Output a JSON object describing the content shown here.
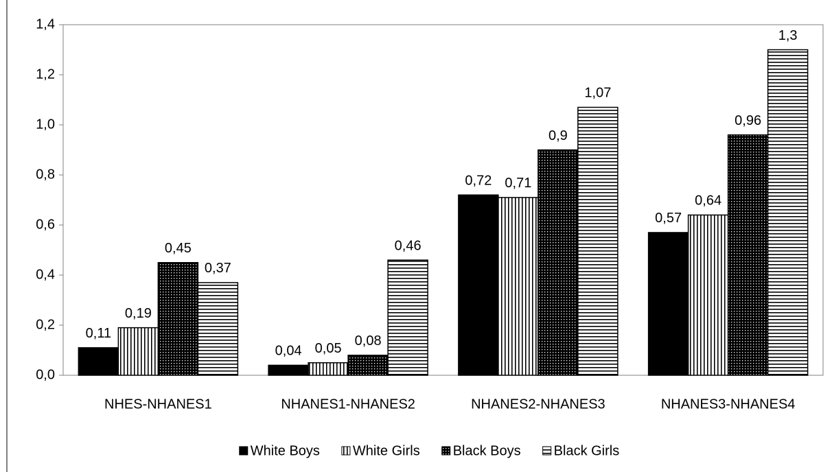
{
  "chart_data": {
    "type": "bar",
    "categories": [
      "NHES-NHANES1",
      "NHANES1-NHANES2",
      "NHANES2-NHANES3",
      "NHANES3-NHANES4"
    ],
    "series": [
      {
        "name": "White Boys",
        "color": "#000000",
        "pattern": "solid",
        "values": [
          0.11,
          0.04,
          0.72,
          0.57
        ],
        "value_labels": [
          "0,11",
          "0,04",
          "0,72",
          "0,57"
        ]
      },
      {
        "name": "White Girls",
        "color": "#000000",
        "pattern": "vertical",
        "values": [
          0.19,
          0.05,
          0.71,
          0.64
        ],
        "value_labels": [
          "0,19",
          "0,05",
          "0,71",
          "0,64"
        ]
      },
      {
        "name": "Black Boys",
        "color": "#000000",
        "pattern": "dots",
        "values": [
          0.45,
          0.08,
          0.9,
          0.96
        ],
        "value_labels": [
          "0,45",
          "0,08",
          "0,9",
          "0,96"
        ]
      },
      {
        "name": "Black Girls",
        "color": "#000000",
        "pattern": "horizontal",
        "values": [
          0.37,
          0.46,
          1.07,
          1.3
        ],
        "value_labels": [
          "0,37",
          "0,46",
          "1,07",
          "1,3"
        ]
      }
    ],
    "ylim": [
      0,
      1.4
    ],
    "yticks": [
      {
        "value": 0,
        "label": "0,0"
      },
      {
        "value": 0.2,
        "label": "0,2"
      },
      {
        "value": 0.4,
        "label": "0,4"
      },
      {
        "value": 0.6,
        "label": "0,6"
      },
      {
        "value": 0.8,
        "label": "0,8"
      },
      {
        "value": 1.0,
        "label": "1,0"
      },
      {
        "value": 1.2,
        "label": "1,2"
      },
      {
        "value": 1.4,
        "label": "1,4"
      }
    ],
    "legend": "bottom"
  }
}
